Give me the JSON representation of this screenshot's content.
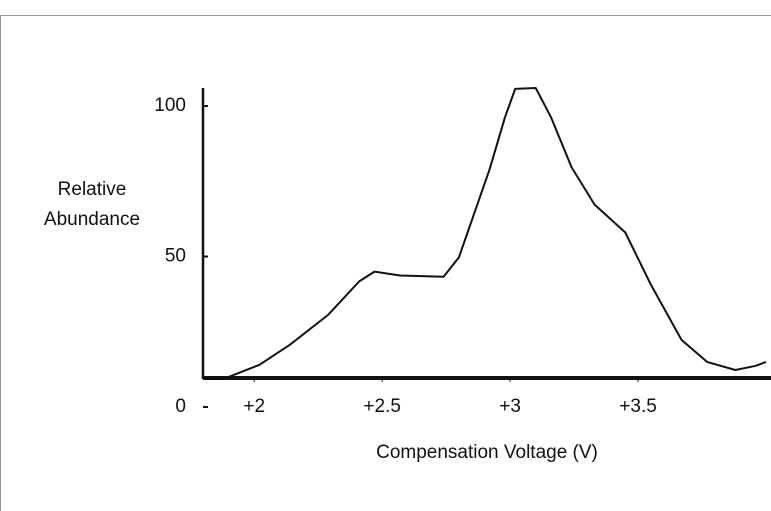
{
  "chart_data": {
    "type": "line",
    "xlabel": "Compensation Voltage (V)",
    "ylabel": "Relative Abundance",
    "x": [
      1.8,
      1.9,
      2.02,
      2.14,
      2.29,
      2.41,
      2.47,
      2.57,
      2.74,
      2.8,
      2.92,
      2.98,
      3.02,
      3.1,
      3.16,
      3.24,
      3.33,
      3.45,
      3.55,
      3.67,
      3.77,
      3.88,
      3.96,
      4.0
    ],
    "series": [
      {
        "color": "#111111",
        "values": [
          9.7,
          10,
          14,
          20.7,
          30.7,
          41.7,
          45,
          43.7,
          43.3,
          49.7,
          79,
          96.3,
          105.7,
          106,
          96.3,
          79.7,
          67.3,
          58,
          40.7,
          22.3,
          15,
          12.3,
          13.7,
          15
        ]
      }
    ],
    "xlim": [
      1.8,
      4.0
    ],
    "xticks": [
      {
        "value": 2,
        "label": "+2"
      },
      {
        "value": 2.5,
        "label": "+2.5"
      },
      {
        "value": 3,
        "label": "+3"
      },
      {
        "value": 3.5,
        "label": "+3.5"
      }
    ],
    "ylim": [
      0,
      106
    ],
    "yticks": [
      0,
      50,
      100
    ]
  }
}
